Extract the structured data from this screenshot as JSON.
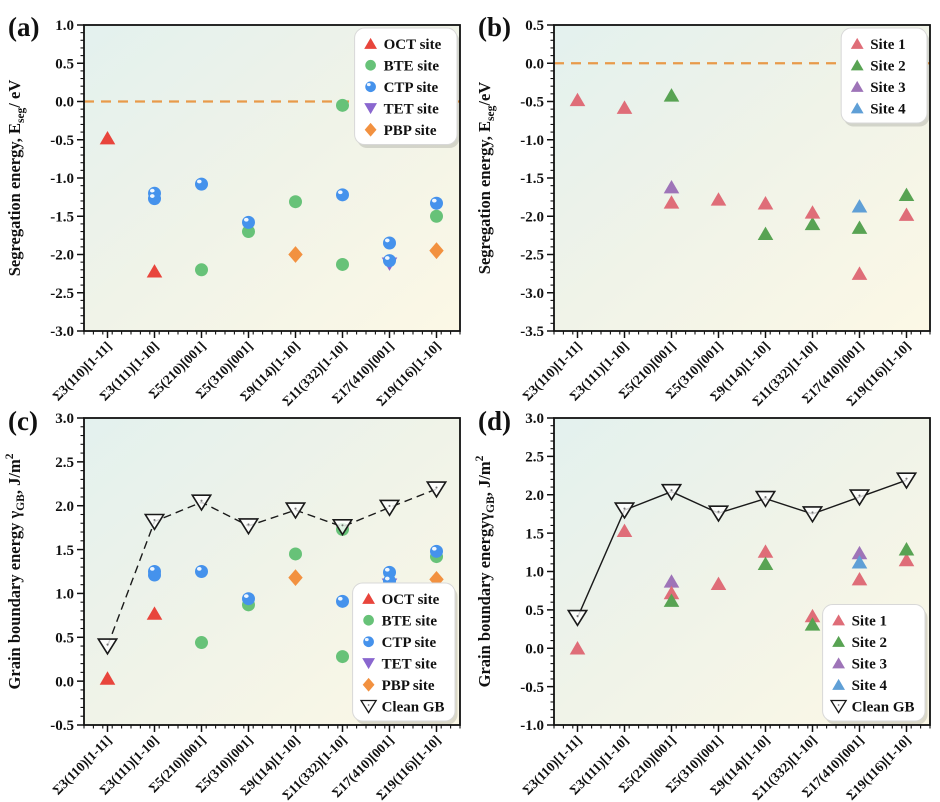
{
  "shared": {
    "categories": [
      "Σ3(110)[1-11]",
      "Σ3(111)[1-10]",
      "Σ5(210)[001]",
      "Σ5(310)[001]",
      "Σ9(114)[1-10]",
      "Σ11(332)[1-10]",
      "Σ17(410)[001]",
      "Σ19(116)[1-10]"
    ],
    "plot_bg_gradient": [
      "#e3f1ee",
      "#f0f3e8",
      "#fcf8e6"
    ],
    "axis_color": "#111111",
    "ref_line_color": "#e89a4a",
    "clean_gb_color": "#1a1a1a"
  },
  "chart_data": [
    {
      "id": "a",
      "panel_label": "(a)",
      "type": "scatter",
      "ylabel_segments": [
        {
          "t": "Segregation energy, E"
        },
        {
          "t": "seg",
          "style": "sub"
        },
        {
          "t": "/ eV"
        }
      ],
      "ylim": [
        -3.0,
        1.0
      ],
      "ytick_step": 0.5,
      "yminor_step": 0.1,
      "grid": false,
      "ref_line": {
        "y": 0.0,
        "dash": true
      },
      "legend": {
        "position": "top-right",
        "order": [
          "OCT site",
          "BTE site",
          "CTP site",
          "TET site",
          "PBP site"
        ]
      },
      "series": [
        {
          "name": "TET site",
          "marker": "triangle-down",
          "color": "#8a67cf",
          "points": [
            [
              6,
              -2.12
            ]
          ]
        },
        {
          "name": "OCT site",
          "marker": "triangle-up",
          "color": "#e8453c",
          "points": [
            [
              0,
              -0.48
            ],
            [
              1,
              -2.22
            ]
          ]
        },
        {
          "name": "BTE site",
          "marker": "circle",
          "color": "#67c278",
          "points": [
            [
              2,
              -2.2
            ],
            [
              3,
              -1.7
            ],
            [
              4,
              -1.31
            ],
            [
              5,
              -0.05
            ],
            [
              5,
              -2.13
            ],
            [
              7,
              -1.5
            ]
          ]
        },
        {
          "name": "CTP site",
          "marker": "circle-gloss",
          "color": "#4592ec",
          "points": [
            [
              1,
              -1.2
            ],
            [
              1,
              -1.27
            ],
            [
              2,
              -1.08
            ],
            [
              3,
              -1.58
            ],
            [
              5,
              -1.22
            ],
            [
              6,
              -1.85
            ],
            [
              6,
              -2.08
            ],
            [
              7,
              -1.33
            ]
          ]
        },
        {
          "name": "PBP site",
          "marker": "diamond",
          "color": "#f29140",
          "points": [
            [
              4,
              -2.0
            ],
            [
              7,
              -1.95
            ]
          ]
        }
      ]
    },
    {
      "id": "b",
      "panel_label": "(b)",
      "type": "scatter",
      "ylabel_segments": [
        {
          "t": "Segregation energy, E"
        },
        {
          "t": "seg",
          "style": "sub"
        },
        {
          "t": "/eV"
        }
      ],
      "ylim": [
        -3.5,
        0.5
      ],
      "ytick_step": 0.5,
      "yminor_step": 0.1,
      "grid": false,
      "ref_line": {
        "y": 0.0,
        "dash": true
      },
      "legend": {
        "position": "top-right",
        "order": [
          "Site 1",
          "Site 2",
          "Site 3",
          "Site 4"
        ]
      },
      "series": [
        {
          "name": "Site 3",
          "marker": "triangle-up",
          "color": "#9e74b8",
          "points": [
            [
              2,
              -1.62
            ]
          ]
        },
        {
          "name": "Site 4",
          "marker": "triangle-up",
          "color": "#5f9fd6",
          "points": [
            [
              6,
              -1.87
            ]
          ]
        },
        {
          "name": "Site 2",
          "marker": "triangle-up",
          "color": "#58a353",
          "points": [
            [
              2,
              -0.42
            ],
            [
              4,
              -2.23
            ],
            [
              5,
              -2.1
            ],
            [
              6,
              -2.15
            ],
            [
              7,
              -1.72
            ]
          ]
        },
        {
          "name": "Site 1",
          "marker": "triangle-up",
          "color": "#df6d78",
          "points": [
            [
              0,
              -0.48
            ],
            [
              1,
              -0.58
            ],
            [
              2,
              -1.82
            ],
            [
              3,
              -1.78
            ],
            [
              4,
              -1.83
            ],
            [
              5,
              -1.95
            ],
            [
              6,
              -2.75
            ],
            [
              7,
              -1.98
            ]
          ]
        }
      ]
    },
    {
      "id": "c",
      "panel_label": "(c)",
      "type": "scatter",
      "ylabel_segments": [
        {
          "t": "Grain boundary energy γ"
        },
        {
          "t": "GB",
          "style": "sub"
        },
        {
          "t": ", J/m"
        },
        {
          "t": "2",
          "style": "sup"
        }
      ],
      "ylim": [
        -0.5,
        3.0
      ],
      "ytick_step": 0.5,
      "yminor_step": 0.1,
      "grid": false,
      "legend": {
        "position": "bottom-right",
        "order": [
          "OCT site",
          "BTE site",
          "CTP site",
          "TET site",
          "PBP site",
          "Clean GB"
        ]
      },
      "series": [
        {
          "name": "TET site",
          "marker": "triangle-down",
          "color": "#8a67cf",
          "points": [
            [
              6,
              1.1
            ]
          ]
        },
        {
          "name": "OCT site",
          "marker": "triangle-up",
          "color": "#e8453c",
          "points": [
            [
              0,
              0.03
            ],
            [
              1,
              0.77
            ]
          ]
        },
        {
          "name": "BTE site",
          "marker": "circle",
          "color": "#67c278",
          "points": [
            [
              2,
              0.44
            ],
            [
              3,
              0.87
            ],
            [
              4,
              1.45
            ],
            [
              5,
              1.73
            ],
            [
              5,
              0.28
            ],
            [
              7,
              1.42
            ]
          ]
        },
        {
          "name": "CTP site",
          "marker": "circle-gloss",
          "color": "#4592ec",
          "points": [
            [
              1,
              1.21
            ],
            [
              1,
              1.25
            ],
            [
              2,
              1.25
            ],
            [
              3,
              0.94
            ],
            [
              5,
              0.91
            ],
            [
              6,
              1.24
            ],
            [
              6,
              1.14
            ],
            [
              7,
              1.48
            ]
          ]
        },
        {
          "name": "PBP site",
          "marker": "diamond",
          "color": "#f29140",
          "points": [
            [
              4,
              1.18
            ],
            [
              7,
              1.16
            ]
          ]
        },
        {
          "name": "Clean GB",
          "marker": "open-triangle-down",
          "color": "#1a1a1a",
          "line": {
            "dash": true
          },
          "values": [
            0.4,
            1.82,
            2.04,
            1.77,
            1.95,
            1.76,
            1.98,
            2.19
          ]
        }
      ]
    },
    {
      "id": "d",
      "panel_label": "(d)",
      "type": "scatter",
      "ylabel_segments": [
        {
          "t": "Grain boundary energyγ"
        },
        {
          "t": "GB",
          "style": "sub"
        },
        {
          "t": ", J/m"
        },
        {
          "t": "2",
          "style": "sup"
        }
      ],
      "ylim": [
        -1.0,
        3.0
      ],
      "ytick_step": 0.5,
      "yminor_step": 0.1,
      "grid": false,
      "legend": {
        "position": "bottom-right",
        "order": [
          "Site 1",
          "Site 2",
          "Site 3",
          "Site 4",
          "Clean GB"
        ]
      },
      "series": [
        {
          "name": "Site 3",
          "marker": "triangle-up",
          "color": "#9e74b8",
          "points": [
            [
              2,
              0.87
            ],
            [
              6,
              1.24
            ]
          ]
        },
        {
          "name": "Site 4",
          "marker": "triangle-up",
          "color": "#5f9fd6",
          "points": [
            [
              6,
              1.12
            ]
          ]
        },
        {
          "name": "Site 1",
          "marker": "triangle-up",
          "color": "#df6d78",
          "points": [
            [
              0,
              0.0
            ],
            [
              1,
              1.53
            ],
            [
              2,
              0.72
            ],
            [
              3,
              0.84
            ],
            [
              4,
              1.26
            ],
            [
              5,
              0.42
            ],
            [
              6,
              0.9
            ],
            [
              7,
              1.15
            ]
          ]
        },
        {
          "name": "Site 2",
          "marker": "triangle-up",
          "color": "#58a353",
          "points": [
            [
              2,
              0.62
            ],
            [
              4,
              1.1
            ],
            [
              5,
              0.31
            ],
            [
              7,
              1.29
            ]
          ]
        },
        {
          "name": "Clean GB",
          "marker": "open-triangle-down",
          "color": "#1a1a1a",
          "line": {
            "dash": false
          },
          "values": [
            0.4,
            1.8,
            2.04,
            1.76,
            1.95,
            1.75,
            1.97,
            2.19
          ]
        }
      ]
    }
  ]
}
